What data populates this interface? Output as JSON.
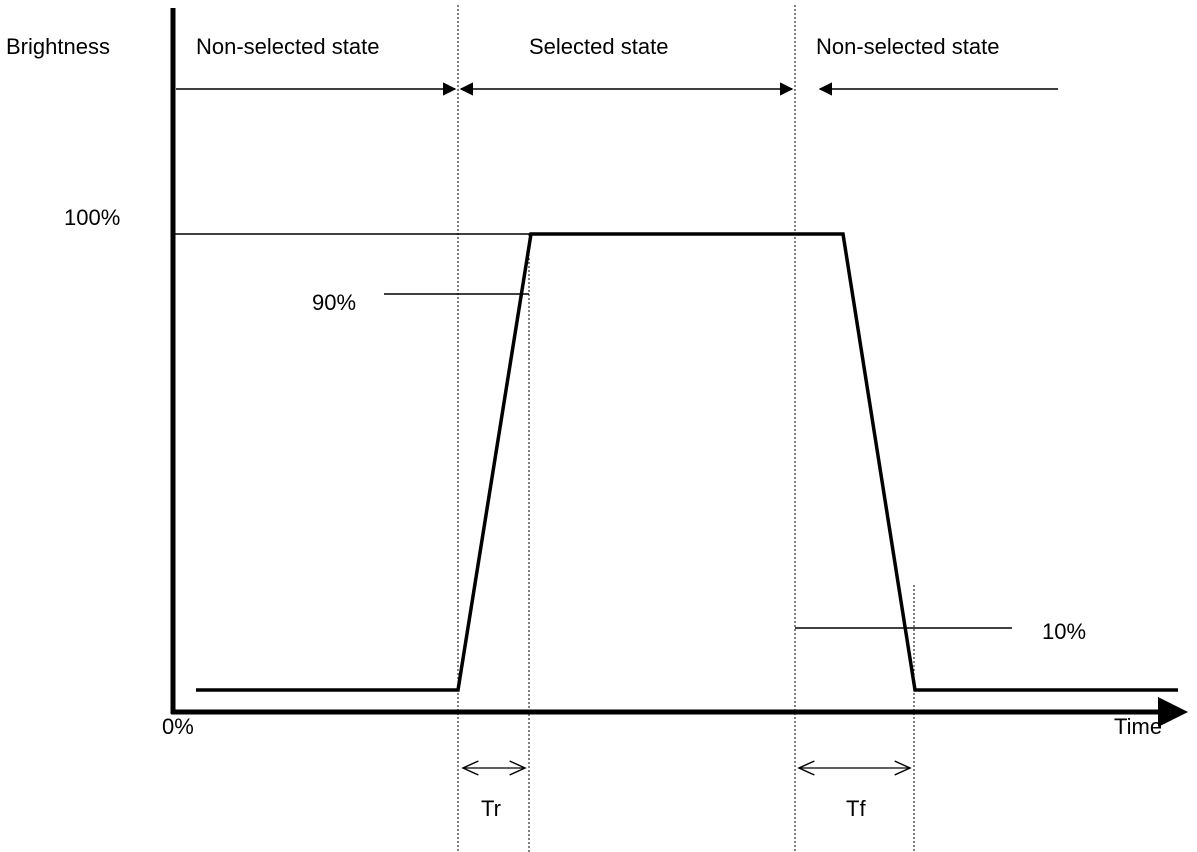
{
  "labels": {
    "y_axis": "Brightness",
    "x_axis": "Time",
    "origin": "0%",
    "level_100": "100%",
    "level_90": "90%",
    "level_10": "10%",
    "rise_time": "Tr",
    "fall_time": "Tf"
  },
  "states": {
    "left": "Non-selected state",
    "middle": "Selected state",
    "right": "Non-selected state"
  },
  "colors": {
    "stroke": "#000000",
    "background": "#ffffff"
  }
}
